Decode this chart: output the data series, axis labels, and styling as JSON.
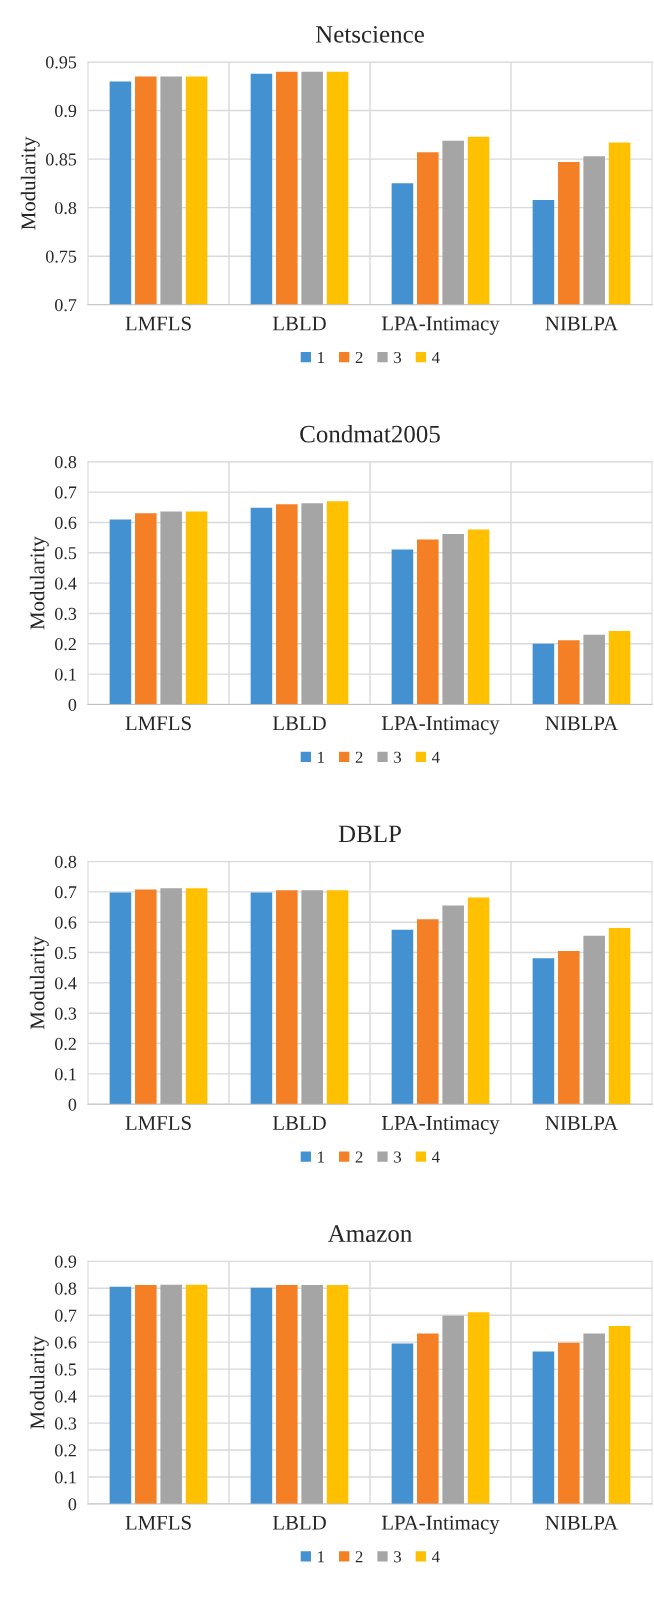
{
  "chart_data": [
    {
      "type": "bar",
      "title": "Netscience",
      "ylabel": "Modularity",
      "categories": [
        "LMFLS",
        "LBLD",
        "LPA-Intimacy",
        "NIBLPA"
      ],
      "ylim": [
        0.7,
        0.95
      ],
      "yticks": [
        0.7,
        0.75,
        0.8,
        0.85,
        0.9,
        0.95
      ],
      "grid": true,
      "legend": "bottom",
      "series": [
        {
          "name": "1",
          "color": "#4391d1",
          "values": [
            0.93,
            0.938,
            0.825,
            0.808
          ]
        },
        {
          "name": "2",
          "color": "#f47f25",
          "values": [
            0.935,
            0.94,
            0.857,
            0.847
          ]
        },
        {
          "name": "3",
          "color": "#a5a5a5",
          "values": [
            0.935,
            0.94,
            0.869,
            0.853
          ]
        },
        {
          "name": "4",
          "color": "#ffc000",
          "values": [
            0.935,
            0.94,
            0.873,
            0.867
          ]
        }
      ]
    },
    {
      "type": "bar",
      "title": "Condmat2005",
      "ylabel": "Modularity",
      "categories": [
        "LMFLS",
        "LBLD",
        "LPA-Intimacy",
        "NIBLPA"
      ],
      "ylim": [
        0,
        0.8
      ],
      "yticks": [
        0,
        0.1,
        0.2,
        0.3,
        0.4,
        0.5,
        0.6,
        0.7,
        0.8
      ],
      "grid": true,
      "legend": "bottom",
      "series": [
        {
          "name": "1",
          "color": "#4391d1",
          "values": [
            0.61,
            0.648,
            0.511,
            0.2
          ]
        },
        {
          "name": "2",
          "color": "#f47f25",
          "values": [
            0.63,
            0.66,
            0.544,
            0.212
          ]
        },
        {
          "name": "3",
          "color": "#a5a5a5",
          "values": [
            0.636,
            0.663,
            0.562,
            0.23
          ]
        },
        {
          "name": "4",
          "color": "#ffc000",
          "values": [
            0.636,
            0.67,
            0.577,
            0.242
          ]
        }
      ]
    },
    {
      "type": "bar",
      "title": "DBLP",
      "ylabel": "Modularity",
      "categories": [
        "LMFLS",
        "LBLD",
        "LPA-Intimacy",
        "NIBLPA"
      ],
      "ylim": [
        0,
        0.8
      ],
      "yticks": [
        0,
        0.1,
        0.2,
        0.3,
        0.4,
        0.5,
        0.6,
        0.7,
        0.8
      ],
      "grid": true,
      "legend": "bottom",
      "series": [
        {
          "name": "1",
          "color": "#4391d1",
          "values": [
            0.698,
            0.698,
            0.575,
            0.481
          ]
        },
        {
          "name": "2",
          "color": "#f47f25",
          "values": [
            0.708,
            0.705,
            0.61,
            0.505
          ]
        },
        {
          "name": "3",
          "color": "#a5a5a5",
          "values": [
            0.712,
            0.705,
            0.655,
            0.555
          ]
        },
        {
          "name": "4",
          "color": "#ffc000",
          "values": [
            0.712,
            0.705,
            0.681,
            0.581
          ]
        }
      ]
    },
    {
      "type": "bar",
      "title": "Amazon",
      "ylabel": "Modularity",
      "categories": [
        "LMFLS",
        "LBLD",
        "LPA-Intimacy",
        "NIBLPA"
      ],
      "ylim": [
        0,
        0.9
      ],
      "yticks": [
        0,
        0.1,
        0.2,
        0.3,
        0.4,
        0.5,
        0.6,
        0.7,
        0.8,
        0.9
      ],
      "grid": true,
      "legend": "bottom",
      "series": [
        {
          "name": "1",
          "color": "#4391d1",
          "values": [
            0.805,
            0.802,
            0.595,
            0.565
          ]
        },
        {
          "name": "2",
          "color": "#f47f25",
          "values": [
            0.812,
            0.812,
            0.632,
            0.598
          ]
        },
        {
          "name": "3",
          "color": "#a5a5a5",
          "values": [
            0.813,
            0.812,
            0.698,
            0.632
          ]
        },
        {
          "name": "4",
          "color": "#ffc000",
          "values": [
            0.813,
            0.812,
            0.711,
            0.66
          ]
        }
      ]
    }
  ]
}
